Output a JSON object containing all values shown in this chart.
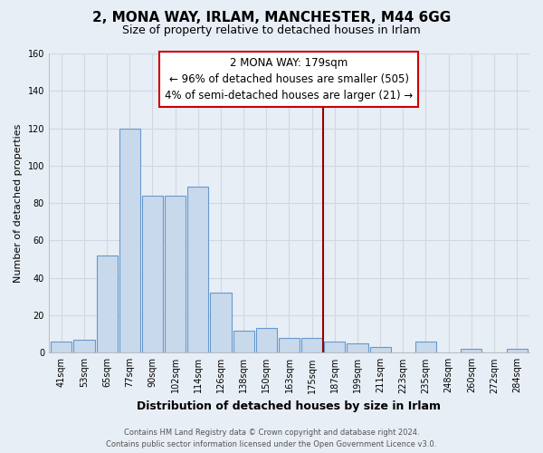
{
  "title": "2, MONA WAY, IRLAM, MANCHESTER, M44 6GG",
  "subtitle": "Size of property relative to detached houses in Irlam",
  "xlabel": "Distribution of detached houses by size in Irlam",
  "ylabel": "Number of detached properties",
  "bar_labels": [
    "41sqm",
    "53sqm",
    "65sqm",
    "77sqm",
    "90sqm",
    "102sqm",
    "114sqm",
    "126sqm",
    "138sqm",
    "150sqm",
    "163sqm",
    "175sqm",
    "187sqm",
    "199sqm",
    "211sqm",
    "223sqm",
    "235sqm",
    "248sqm",
    "260sqm",
    "272sqm",
    "284sqm"
  ],
  "bar_values": [
    6,
    7,
    52,
    120,
    84,
    84,
    89,
    32,
    12,
    13,
    8,
    8,
    6,
    5,
    3,
    0,
    6,
    0,
    2,
    0,
    2
  ],
  "bar_color": "#c8d9ec",
  "bar_edge_color": "#6699cc",
  "ylim": [
    0,
    160
  ],
  "yticks": [
    0,
    20,
    40,
    60,
    80,
    100,
    120,
    140,
    160
  ],
  "marker_label": "2 MONA WAY: 179sqm",
  "annotation_line1": "← 96% of detached houses are smaller (505)",
  "annotation_line2": "4% of semi-detached houses are larger (21) →",
  "marker_color": "#990000",
  "annotation_box_facecolor": "#ffffff",
  "annotation_box_edgecolor": "#cc0000",
  "footer_line1": "Contains HM Land Registry data © Crown copyright and database right 2024.",
  "footer_line2": "Contains public sector information licensed under the Open Government Licence v3.0.",
  "bg_color": "#e8eef5",
  "grid_color": "#d0d8e4",
  "title_fontsize": 11,
  "subtitle_fontsize": 9,
  "xlabel_fontsize": 9,
  "ylabel_fontsize": 8,
  "tick_fontsize": 7,
  "footer_fontsize": 6,
  "annotation_fontsize": 8.5
}
